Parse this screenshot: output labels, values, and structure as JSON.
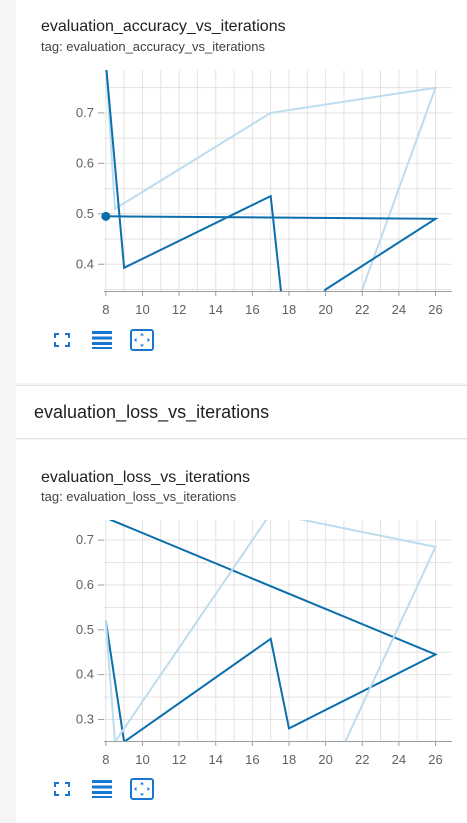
{
  "section": {
    "title": "evaluation_loss_vs_iterations"
  },
  "panels": [
    {
      "title": "evaluation_accuracy_vs_iterations",
      "tag": "tag: evaluation_accuracy_vs_iterations"
    },
    {
      "title": "evaluation_loss_vs_iterations",
      "tag": "tag: evaluation_loss_vs_iterations"
    }
  ],
  "toolbar": {
    "icons": [
      "fullscreen-icon",
      "toggle-log-scale-icon",
      "fit-domain-icon"
    ]
  },
  "colors": {
    "smoothed_series": "#0b6fad",
    "raw_series": "#bddcee",
    "grid": "#e3e3e3",
    "tick_text": "#616161",
    "icon": "#1976d2"
  },
  "chart_data": [
    {
      "type": "line",
      "title": "evaluation_accuracy_vs_iterations",
      "xlabel": "",
      "ylabel": "",
      "xlim": [
        7.9,
        26.9
      ],
      "ylim": [
        0.347,
        0.785
      ],
      "x_ticks": [
        8,
        10,
        12,
        14,
        16,
        18,
        20,
        22,
        24,
        26
      ],
      "y_ticks": [
        0.4,
        0.5,
        0.6,
        0.7
      ],
      "grid": true,
      "series": [
        {
          "values_x": [
            8,
            8.5,
            17,
            26,
            21.5
          ],
          "values_y": [
            0.8,
            0.51,
            0.7,
            0.75,
            0.3
          ]
        },
        {
          "values_x": [
            8,
            9,
            17,
            18,
            20,
            26,
            8
          ],
          "values_y": [
            0.8,
            0.393,
            0.535,
            0.2,
            0.35,
            0.49,
            0.495
          ]
        }
      ],
      "markers": [
        {
          "x": 8,
          "y": 0.495
        }
      ]
    },
    {
      "type": "line",
      "title": "evaluation_loss_vs_iterations",
      "xlabel": "",
      "ylabel": "",
      "xlim": [
        7.9,
        26.9
      ],
      "ylim": [
        0.252,
        0.745
      ],
      "x_ticks": [
        8,
        10,
        12,
        14,
        16,
        18,
        20,
        22,
        24,
        26
      ],
      "y_ticks": [
        0.3,
        0.4,
        0.5,
        0.6,
        0.7
      ],
      "grid": true,
      "series": [
        {
          "values_x": [
            8,
            9,
            17,
            18,
            26,
            8
          ],
          "values_y": [
            0.52,
            0.25,
            0.48,
            0.28,
            0.445,
            0.75
          ]
        },
        {
          "values_x": [
            8,
            8.5,
            17,
            26,
            20.5
          ],
          "values_y": [
            0.52,
            0.25,
            0.76,
            0.685,
            0.2
          ]
        }
      ]
    }
  ]
}
